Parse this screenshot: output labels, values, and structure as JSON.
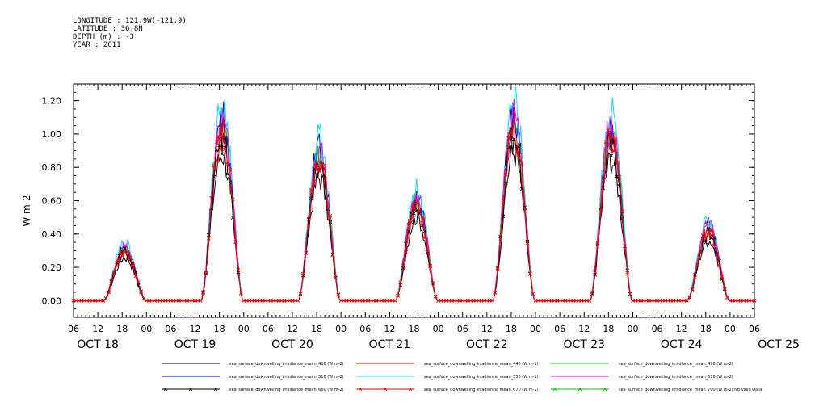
{
  "header": {
    "longitude": "LONGITUDE : 121.9W(-121.9)",
    "latitude": "LATITUDE : 36.8N",
    "depth": "DEPTH (m) : -3",
    "year": "YEAR : 2011"
  },
  "chart_data": {
    "type": "line",
    "ylabel": "W m-2",
    "ylim": [
      -0.1,
      1.3
    ],
    "y_ticks": [
      "0.00",
      "0.20",
      "0.40",
      "0.60",
      "0.80",
      "1.00",
      "1.20"
    ],
    "x_hour_ticks": [
      "06",
      "12",
      "18",
      "00",
      "06",
      "12",
      "18",
      "00",
      "06",
      "12",
      "18",
      "00",
      "06",
      "12",
      "18",
      "00",
      "06",
      "12",
      "18",
      "00",
      "06",
      "12",
      "18",
      "00",
      "06",
      "12",
      "18",
      "00",
      "06"
    ],
    "x_day_labels": [
      "OCT 18",
      "OCT 19",
      "OCT 20",
      "OCT 21",
      "OCT 22",
      "OCT 23",
      "OCT 24",
      "OCT 25"
    ],
    "x_start": "2011-10-18 06:00",
    "x_end": "2011-10-25 06:00",
    "grid": false,
    "legend_position": "bottom",
    "day_peaks": [
      {
        "day": "OCT 18",
        "peak_sunrise_hour": 13,
        "sunset_hour": 24,
        "peak": 0.3
      },
      {
        "day": "OCT 19",
        "peak_sunrise_hour": 13,
        "sunset_hour": 24,
        "peak": 1.02
      },
      {
        "day": "OCT 20",
        "peak_sunrise_hour": 13,
        "sunset_hour": 24,
        "peak": 0.85
      },
      {
        "day": "OCT 21",
        "peak_sunrise_hour": 13,
        "sunset_hour": 24,
        "peak": 0.58
      },
      {
        "day": "OCT 22",
        "peak_sunrise_hour": 13,
        "sunset_hour": 24,
        "peak": 1.03
      },
      {
        "day": "OCT 23",
        "peak_sunrise_hour": 13,
        "sunset_hour": 24,
        "peak": 0.98
      },
      {
        "day": "OCT 24",
        "peak_sunrise_hour": 13,
        "sunset_hour": 24,
        "peak": 0.42
      }
    ],
    "series": [
      {
        "name": "sea_surface_downwelling_irradiance_mean_410 (W m-2)",
        "color": "#000000",
        "scale": 0.87,
        "marker": "none"
      },
      {
        "name": "sea_surface_downwelling_irradiance_mean_440 (W m-2)",
        "color": "#ff0000",
        "scale": 0.96,
        "marker": "none"
      },
      {
        "name": "sea_surface_downwelling_irradiance_mean_490 (W m-2)",
        "color": "#00cc00",
        "scale": 1.05,
        "marker": "none"
      },
      {
        "name": "sea_surface_downwelling_irradiance_mean_510 (W m-2)",
        "color": "#0000ff",
        "scale": 1.08,
        "marker": "none"
      },
      {
        "name": "sea_surface_downwelling_irradiance_mean_550 (W m-2)",
        "color": "#00e0ff",
        "scale": 1.15,
        "marker": "none"
      },
      {
        "name": "sea_surface_downwelling_irradiance_mean_610 (W m-2)",
        "color": "#ff00ff",
        "scale": 1.07,
        "marker": "none"
      },
      {
        "name": "sea_surface_downwelling_irradiance_mean_660 (W m-2)",
        "color": "#000000",
        "scale": 0.96,
        "marker": "x"
      },
      {
        "name": "sea_surface_downwelling_irradiance_mean_670 (W m-2)",
        "color": "#ff0000",
        "scale": 1.0,
        "marker": "x"
      },
      {
        "name": "sea_surface_downwelling_irradiance_mean_700 (W m-2) No Valid Data",
        "color": "#00cc00",
        "scale": 0,
        "marker": "x"
      }
    ]
  }
}
